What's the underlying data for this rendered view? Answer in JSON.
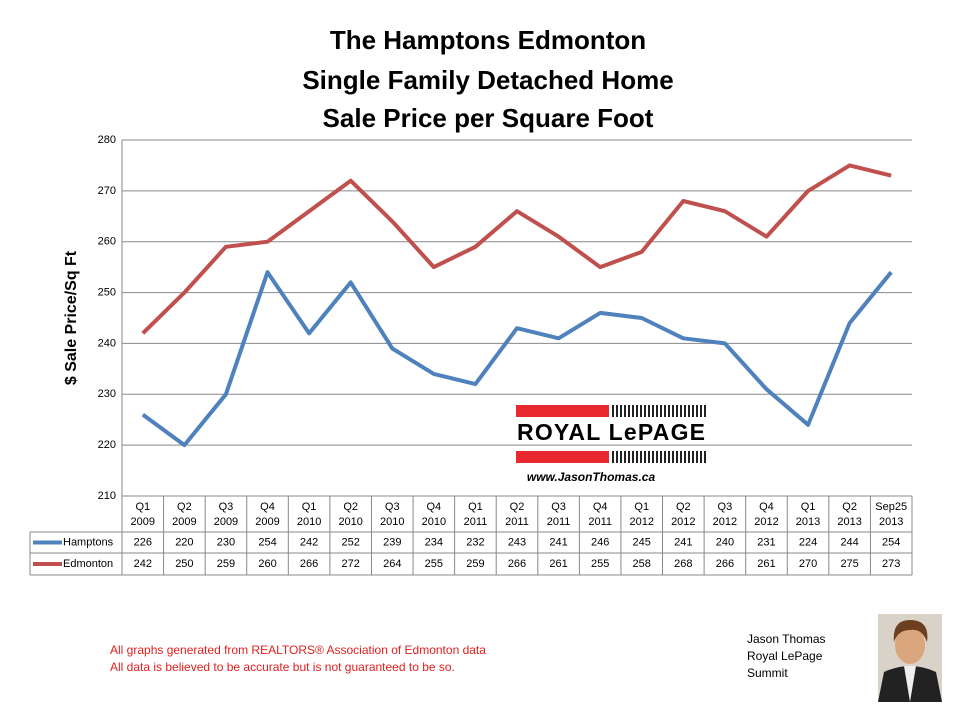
{
  "chart_data": {
    "type": "line",
    "title_lines": [
      "The Hamptons Edmonton",
      "Single Family Detached Home",
      "Sale Price per Square Foot"
    ],
    "y_label": "$ Sale Price/Sq Ft",
    "categories": [
      [
        "Q1",
        "2009"
      ],
      [
        "Q2",
        "2009"
      ],
      [
        "Q3",
        "2009"
      ],
      [
        "Q4",
        "2009"
      ],
      [
        "Q1",
        "2010"
      ],
      [
        "Q2",
        "2010"
      ],
      [
        "Q3",
        "2010"
      ],
      [
        "Q4",
        "2010"
      ],
      [
        "Q1",
        "2011"
      ],
      [
        "Q2",
        "2011"
      ],
      [
        "Q3",
        "2011"
      ],
      [
        "Q4",
        "2011"
      ],
      [
        "Q1",
        "2012"
      ],
      [
        "Q2",
        "2012"
      ],
      [
        "Q3",
        "2012"
      ],
      [
        "Q4",
        "2012"
      ],
      [
        "Q1",
        "2013"
      ],
      [
        "Q2",
        "2013"
      ],
      [
        "Sep25",
        "2013"
      ]
    ],
    "series": [
      {
        "name": "Hamptons",
        "color": "#4f81bd",
        "values": [
          226,
          220,
          230,
          254,
          242,
          252,
          239,
          234,
          232,
          243,
          241,
          246,
          245,
          241,
          240,
          231,
          224,
          244,
          254
        ]
      },
      {
        "name": "Edmonton",
        "color": "#c0504d",
        "values": [
          242,
          250,
          259,
          260,
          266,
          272,
          264,
          255,
          259,
          266,
          261,
          255,
          258,
          268,
          266,
          261,
          270,
          275,
          273
        ]
      }
    ],
    "ylim": [
      210,
      280
    ],
    "yticks": [
      210,
      220,
      230,
      240,
      250,
      260,
      270,
      280
    ],
    "grid": true,
    "logo": {
      "brand": "ROYAL LePAGE",
      "url": "www.JasonThomas.ca"
    },
    "footnotes": [
      "All graphs generated from REALTORS® Association of Edmonton data",
      "All data is believed to be accurate but is not guaranteed to be so."
    ],
    "signature": [
      "Jason Thomas",
      "Royal LePage",
      "Summit"
    ]
  }
}
